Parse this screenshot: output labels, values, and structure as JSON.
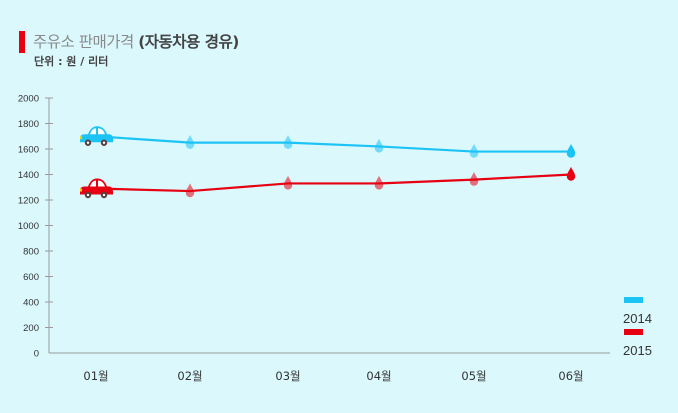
{
  "header": {
    "title_light": "주유소 판매가격",
    "title_bold": "(자동차용 경유)",
    "subtitle": "단위 : 원 / 리터",
    "accent_color": "#e60012"
  },
  "legend": [
    {
      "label": "2014",
      "color": "#1cc3f5"
    },
    {
      "label": "2015",
      "color": "#e60012"
    }
  ],
  "chart_data": {
    "type": "line",
    "title": "주유소 판매가격 (자동차용 경유)",
    "subtitle": "단위 : 원 / 리터",
    "xlabel": "",
    "ylabel": "원 / 리터",
    "categories": [
      "01월",
      "02월",
      "03월",
      "04월",
      "05월",
      "06월"
    ],
    "series": [
      {
        "name": "2014",
        "color": "#1cc3f5",
        "values": [
          1700,
          1650,
          1650,
          1620,
          1580,
          1580
        ]
      },
      {
        "name": "2015",
        "color": "#e60012",
        "values": [
          1290,
          1270,
          1330,
          1330,
          1360,
          1400
        ]
      }
    ],
    "ylim": [
      0,
      2000
    ],
    "yticks": [
      0,
      200,
      400,
      600,
      800,
      1000,
      1200,
      1400,
      1600,
      1800,
      2000
    ],
    "grid": false,
    "legend_position": "right-bottom",
    "markers": "start: car icon; middle: faded droplets; end: solid droplet"
  }
}
